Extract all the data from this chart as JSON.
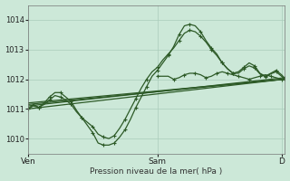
{
  "bg_color": "#cce8d8",
  "plot_bg_color": "#cce8d8",
  "grid_color": "#aaccbb",
  "line_color": "#2d5a27",
  "xlabel": "Pression niveau de la mer( hPa )",
  "yticks": [
    1010,
    1011,
    1012,
    1013,
    1014
  ],
  "ylim": [
    1009.5,
    1014.5
  ],
  "xtick_labels": [
    "Ven",
    "Sam",
    "D"
  ],
  "xtick_positions": [
    0,
    48,
    94
  ],
  "total_points": 96,
  "figsize": [
    3.2,
    2.0
  ],
  "dpi": 100,
  "series": [
    {
      "x": [
        0,
        95
      ],
      "y": [
        1011.0,
        1012.0
      ],
      "marker": null,
      "lw": 0.9
    },
    {
      "x": [
        0,
        95
      ],
      "y": [
        1011.1,
        1012.05
      ],
      "marker": null,
      "lw": 0.9
    },
    {
      "x": [
        0,
        95
      ],
      "y": [
        1011.15,
        1012.0
      ],
      "marker": null,
      "lw": 0.9
    },
    {
      "x": [
        0,
        95
      ],
      "y": [
        1011.2,
        1012.0
      ],
      "marker": null,
      "lw": 0.9
    },
    {
      "x": [
        0,
        2,
        4,
        6,
        8,
        10,
        12,
        14,
        16,
        18,
        20,
        22,
        24,
        26,
        28,
        30,
        32,
        34,
        36,
        38,
        40,
        42,
        44,
        46,
        48,
        50,
        52,
        54,
        56,
        58,
        60,
        62,
        64,
        66,
        68,
        70,
        72,
        74,
        76,
        78,
        80,
        82,
        84,
        86,
        88,
        90,
        92,
        94,
        95
      ],
      "y": [
        1011.0,
        1011.15,
        1011.05,
        1011.2,
        1011.4,
        1011.55,
        1011.55,
        1011.4,
        1011.25,
        1010.95,
        1010.7,
        1010.45,
        1010.2,
        1009.85,
        1009.78,
        1009.78,
        1009.85,
        1010.05,
        1010.3,
        1010.65,
        1011.05,
        1011.4,
        1011.75,
        1012.1,
        1012.3,
        1012.55,
        1012.8,
        1013.1,
        1013.5,
        1013.8,
        1013.85,
        1013.8,
        1013.6,
        1013.3,
        1013.05,
        1012.85,
        1012.55,
        1012.35,
        1012.2,
        1012.25,
        1012.4,
        1012.55,
        1012.45,
        1012.2,
        1012.1,
        1012.2,
        1012.3,
        1012.15,
        1012.05
      ],
      "marker": "+",
      "lw": 0.9
    },
    {
      "x": [
        0,
        2,
        4,
        6,
        8,
        10,
        12,
        14,
        16,
        18,
        20,
        22,
        24,
        26,
        28,
        30,
        32,
        34,
        36,
        38,
        40,
        42,
        44,
        46,
        48,
        50,
        52,
        54,
        56,
        58,
        60,
        62,
        64,
        66,
        68,
        70,
        72,
        74,
        76,
        78,
        80,
        82,
        84,
        86,
        88,
        90,
        92,
        94,
        95
      ],
      "y": [
        1011.0,
        1011.1,
        1011.05,
        1011.15,
        1011.3,
        1011.45,
        1011.4,
        1011.3,
        1011.15,
        1010.9,
        1010.7,
        1010.55,
        1010.4,
        1010.15,
        1010.05,
        1010.0,
        1010.1,
        1010.35,
        1010.65,
        1011.0,
        1011.35,
        1011.7,
        1012.0,
        1012.25,
        1012.4,
        1012.65,
        1012.85,
        1013.05,
        1013.3,
        1013.55,
        1013.65,
        1013.6,
        1013.45,
        1013.25,
        1013.0,
        1012.8,
        1012.55,
        1012.35,
        1012.2,
        1012.2,
        1012.35,
        1012.45,
        1012.38,
        1012.18,
        1012.08,
        1012.18,
        1012.25,
        1012.1,
        1012.02
      ],
      "marker": "+",
      "lw": 0.9
    },
    {
      "x": [
        48,
        52,
        54,
        56,
        58,
        60,
        62,
        64,
        66,
        68,
        70,
        72,
        74,
        76,
        78,
        80,
        82,
        84,
        86,
        88,
        90,
        92,
        94,
        95
      ],
      "y": [
        1012.1,
        1012.1,
        1012.0,
        1012.05,
        1012.15,
        1012.2,
        1012.2,
        1012.15,
        1012.05,
        1012.1,
        1012.2,
        1012.25,
        1012.2,
        1012.15,
        1012.1,
        1012.05,
        1012.0,
        1012.05,
        1012.1,
        1012.15,
        1012.1,
        1012.05,
        1012.0,
        1012.0
      ],
      "marker": "+",
      "lw": 0.9
    }
  ]
}
